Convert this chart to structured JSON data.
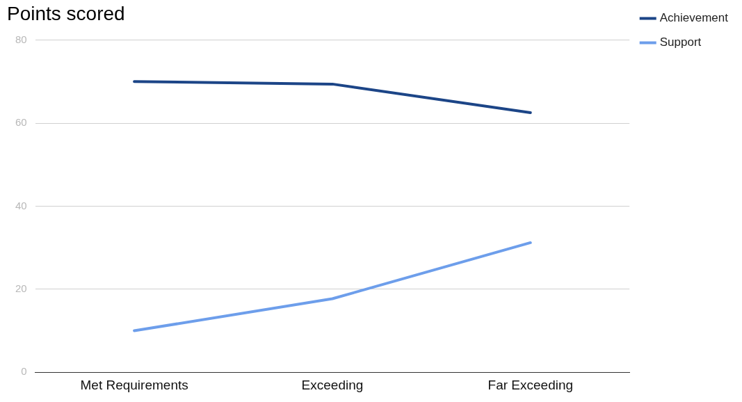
{
  "chart_data": {
    "type": "line",
    "title": "Points scored",
    "categories": [
      "Met Requirements",
      "Exceeding",
      "Far Exceeding"
    ],
    "series": [
      {
        "name": "Achievement",
        "color": "#1c4587",
        "values": [
          70,
          69.4,
          62.5
        ]
      },
      {
        "name": "Support",
        "color": "#6d9eeb",
        "values": [
          10,
          17.7,
          31.2
        ]
      }
    ],
    "ylim": [
      0,
      80
    ],
    "yticks": [
      0,
      20,
      40,
      60,
      80
    ],
    "grid": "y",
    "legend": "top right",
    "marker": "none",
    "line_style": "solid"
  }
}
